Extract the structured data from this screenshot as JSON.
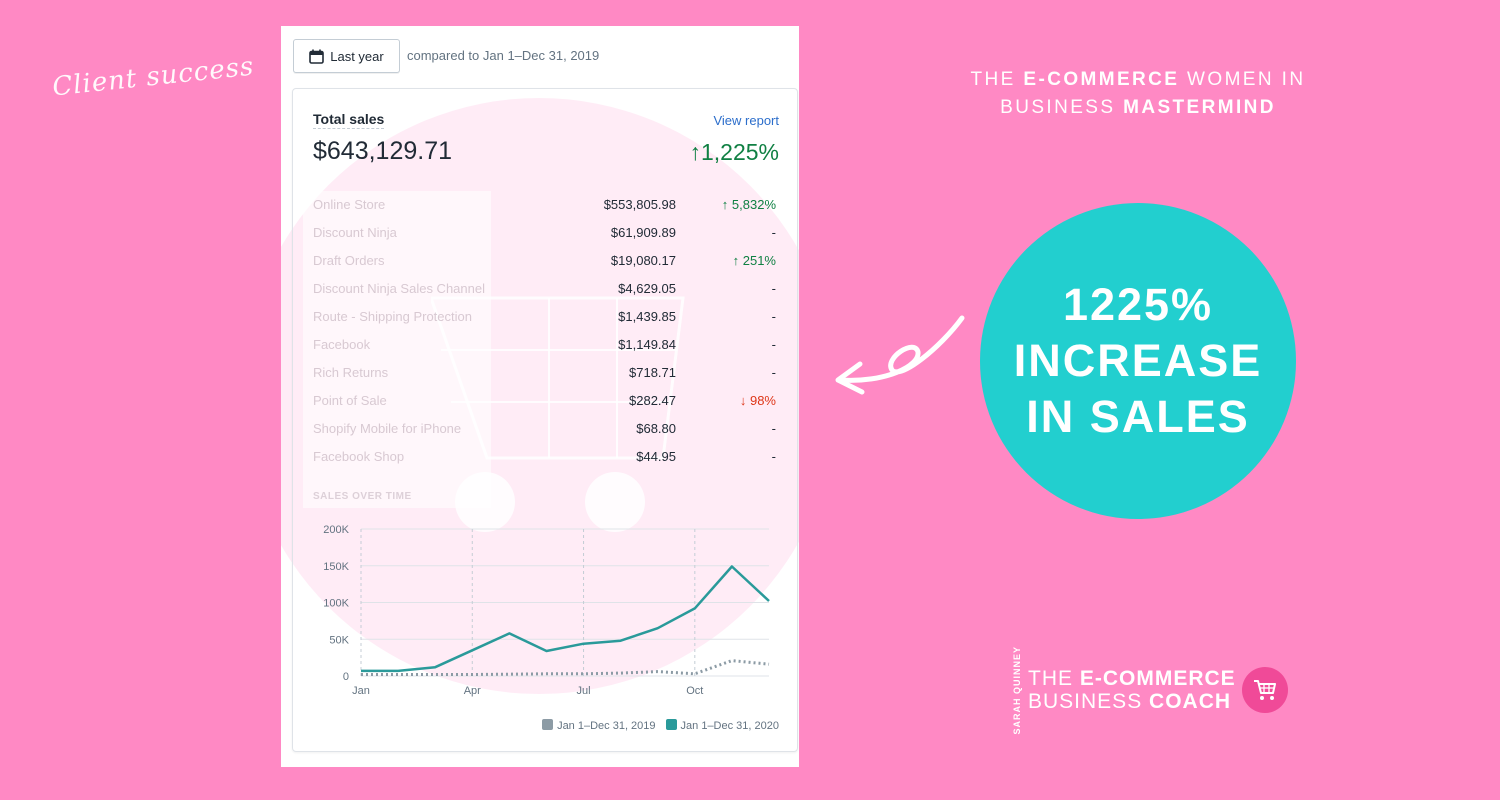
{
  "script_title": "Client success",
  "header": {
    "line1_a": "THE ",
    "line1_b": "E-COMMERCE",
    "line1_c": " WOMEN IN",
    "line2_a": "BUSINESS ",
    "line2_b": "MASTERMIND"
  },
  "callout": {
    "line1": "1225%",
    "line2": "INCREASE",
    "line3": "IN SALES",
    "color": "#22cfcf"
  },
  "brand": {
    "sub": "SARAH QUINNEY",
    "line1_a": "THE ",
    "line1_b": "E-COMMERCE",
    "line2_a": "BUSINESS ",
    "line2_b": "COACH",
    "icon": "shopping-cart-icon"
  },
  "panel": {
    "date_button": "Last year",
    "date_icon": "calendar-icon",
    "compare_text": "compared to Jan 1–Dec 31, 2019",
    "card": {
      "title": "Total sales",
      "link": "View report",
      "total": "$643,129.71",
      "total_change": "↑1,225%",
      "rows": [
        {
          "channel": "Online Store",
          "value": "$553,805.98",
          "change": "↑ 5,832%",
          "dir": "up"
        },
        {
          "channel": "Discount Ninja",
          "value": "$61,909.89",
          "change": "-",
          "dir": "none"
        },
        {
          "channel": "Draft Orders",
          "value": "$19,080.17",
          "change": "↑ 251%",
          "dir": "up"
        },
        {
          "channel": "Discount Ninja Sales Channel",
          "value": "$4,629.05",
          "change": "-",
          "dir": "none"
        },
        {
          "channel": "Route - Shipping Protection",
          "value": "$1,439.85",
          "change": "-",
          "dir": "none"
        },
        {
          "channel": "Facebook",
          "value": "$1,149.84",
          "change": "-",
          "dir": "none"
        },
        {
          "channel": "Rich Returns",
          "value": "$718.71",
          "change": "-",
          "dir": "none"
        },
        {
          "channel": "Point of Sale",
          "value": "$282.47",
          "change": "↓ 98%",
          "dir": "down"
        },
        {
          "channel": "Shopify Mobile for iPhone",
          "value": "$68.80",
          "change": "-",
          "dir": "none"
        },
        {
          "channel": "Facebook Shop",
          "value": "$44.95",
          "change": "-",
          "dir": "none"
        }
      ],
      "section_label": "SALES OVER TIME",
      "legend": [
        {
          "label": "Jan 1–Dec 31, 2019",
          "color": "#8c9ba5"
        },
        {
          "label": "Jan 1–Dec 31, 2020",
          "color": "#2a9a9a"
        }
      ]
    }
  },
  "chart_data": {
    "type": "line",
    "title": "SALES OVER TIME",
    "x": [
      "Jan",
      "Feb",
      "Mar",
      "Apr",
      "May",
      "Jun",
      "Jul",
      "Aug",
      "Sep",
      "Oct",
      "Nov",
      "Dec"
    ],
    "x_ticks": [
      "Jan",
      "Apr",
      "Jul",
      "Oct"
    ],
    "y_ticks": [
      "200K",
      "150K",
      "100K",
      "50K",
      "0"
    ],
    "ylim": [
      0,
      200000
    ],
    "series": [
      {
        "name": "Jan 1–Dec 31, 2019",
        "style": "dotted",
        "color": "#8c9ba5",
        "values": [
          2000,
          2000,
          2000,
          2000,
          2500,
          3000,
          3000,
          4000,
          6000,
          3000,
          21000,
          16000
        ]
      },
      {
        "name": "Jan 1–Dec 31, 2020",
        "style": "solid",
        "color": "#2a9a9a",
        "values": [
          7000,
          7000,
          12000,
          35000,
          58000,
          34000,
          44000,
          48000,
          65000,
          92000,
          149000,
          102000
        ]
      }
    ],
    "grid": true
  }
}
